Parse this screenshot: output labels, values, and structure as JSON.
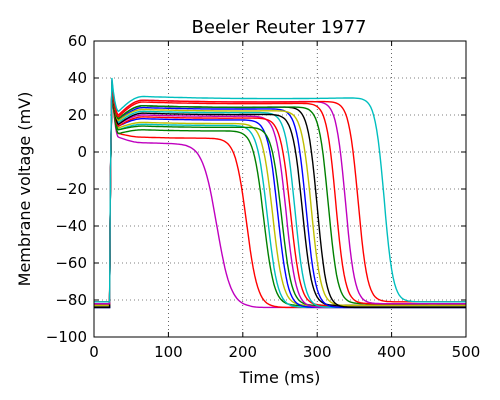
{
  "chart_data": {
    "type": "line",
    "title": "Beeler Reuter 1977",
    "xlabel": "Time (ms)",
    "ylabel": "Membrane voltage (mV)",
    "xlim": [
      0,
      500
    ],
    "ylim": [
      -100,
      60
    ],
    "xticks": [
      0,
      100,
      200,
      300,
      400,
      500
    ],
    "yticks": [
      -100,
      -80,
      -60,
      -40,
      -20,
      0,
      20,
      40,
      60
    ],
    "xtick_labels": [
      "0",
      "100",
      "200",
      "300",
      "400",
      "500"
    ],
    "ytick_labels": [
      "−100",
      "−80",
      "−60",
      "−40",
      "−20",
      "0",
      "20",
      "40",
      "60"
    ],
    "grid": true,
    "series": [
      {
        "color": "#bf00bf",
        "rest": -84,
        "peak": 36,
        "dip": 8,
        "plateau": 5,
        "apd": 190,
        "mid": 165,
        "drop": 38
      },
      {
        "color": "#ff0000",
        "rest": -84,
        "peak": 34,
        "dip": 10,
        "plateau": 8,
        "apd": 225,
        "mid": 205,
        "drop": 30
      },
      {
        "color": "#008000",
        "rest": -83,
        "peak": 35,
        "dip": 10,
        "plateau": 12,
        "apd": 248,
        "mid": 228,
        "drop": 28
      },
      {
        "color": "#00bfbf",
        "rest": -84,
        "peak": 37,
        "dip": 12,
        "plateau": 15,
        "apd": 255,
        "mid": 233,
        "drop": 28
      },
      {
        "color": "#bfbf00",
        "rest": -83,
        "peak": 36,
        "dip": 13,
        "plateau": 16,
        "apd": 262,
        "mid": 240,
        "drop": 28
      },
      {
        "color": "#0000ff",
        "rest": -84,
        "peak": 36,
        "dip": 14,
        "plateau": 18,
        "apd": 270,
        "mid": 247,
        "drop": 27
      },
      {
        "color": "#008000",
        "rest": -83,
        "peak": 35,
        "dip": 12,
        "plateau": 14,
        "apd": 275,
        "mid": 252,
        "drop": 27
      },
      {
        "color": "#bf00bf",
        "rest": -84,
        "peak": 38,
        "dip": 15,
        "plateau": 20,
        "apd": 282,
        "mid": 258,
        "drop": 27
      },
      {
        "color": "#ff0000",
        "rest": -83,
        "peak": 36,
        "dip": 14,
        "plateau": 19,
        "apd": 288,
        "mid": 264,
        "drop": 27
      },
      {
        "color": "#00bfbf",
        "rest": -84,
        "peak": 37,
        "dip": 16,
        "plateau": 22,
        "apd": 295,
        "mid": 270,
        "drop": 26
      },
      {
        "color": "#000000",
        "rest": -83,
        "peak": 36,
        "dip": 15,
        "plateau": 21,
        "apd": 305,
        "mid": 280,
        "drop": 26
      },
      {
        "color": "#0000ff",
        "rest": -84,
        "peak": 38,
        "dip": 17,
        "plateau": 24,
        "apd": 310,
        "mid": 285,
        "drop": 26
      },
      {
        "color": "#bfbf00",
        "rest": -83,
        "peak": 37,
        "dip": 17,
        "plateau": 23,
        "apd": 318,
        "mid": 292,
        "drop": 26
      },
      {
        "color": "#000000",
        "rest": -84,
        "peak": 38,
        "dip": 18,
        "plateau": 25,
        "apd": 325,
        "mid": 300,
        "drop": 25
      },
      {
        "color": "#008000",
        "rest": -82,
        "peak": 37,
        "dip": 18,
        "plateau": 25,
        "apd": 340,
        "mid": 315,
        "drop": 25
      },
      {
        "color": "#ff0000",
        "rest": -82,
        "peak": 38,
        "dip": 19,
        "plateau": 27,
        "apd": 350,
        "mid": 325,
        "drop": 25
      },
      {
        "color": "#bf00bf",
        "rest": -82,
        "peak": 39,
        "dip": 20,
        "plateau": 28,
        "apd": 362,
        "mid": 338,
        "drop": 25
      },
      {
        "color": "#ff0000",
        "rest": -81,
        "peak": 38,
        "dip": 20,
        "plateau": 28,
        "apd": 380,
        "mid": 355,
        "drop": 25
      },
      {
        "color": "#00bfbf",
        "rest": -81,
        "peak": 40,
        "dip": 22,
        "plateau": 30,
        "apd": 420,
        "mid": 390,
        "drop": 24
      }
    ]
  }
}
